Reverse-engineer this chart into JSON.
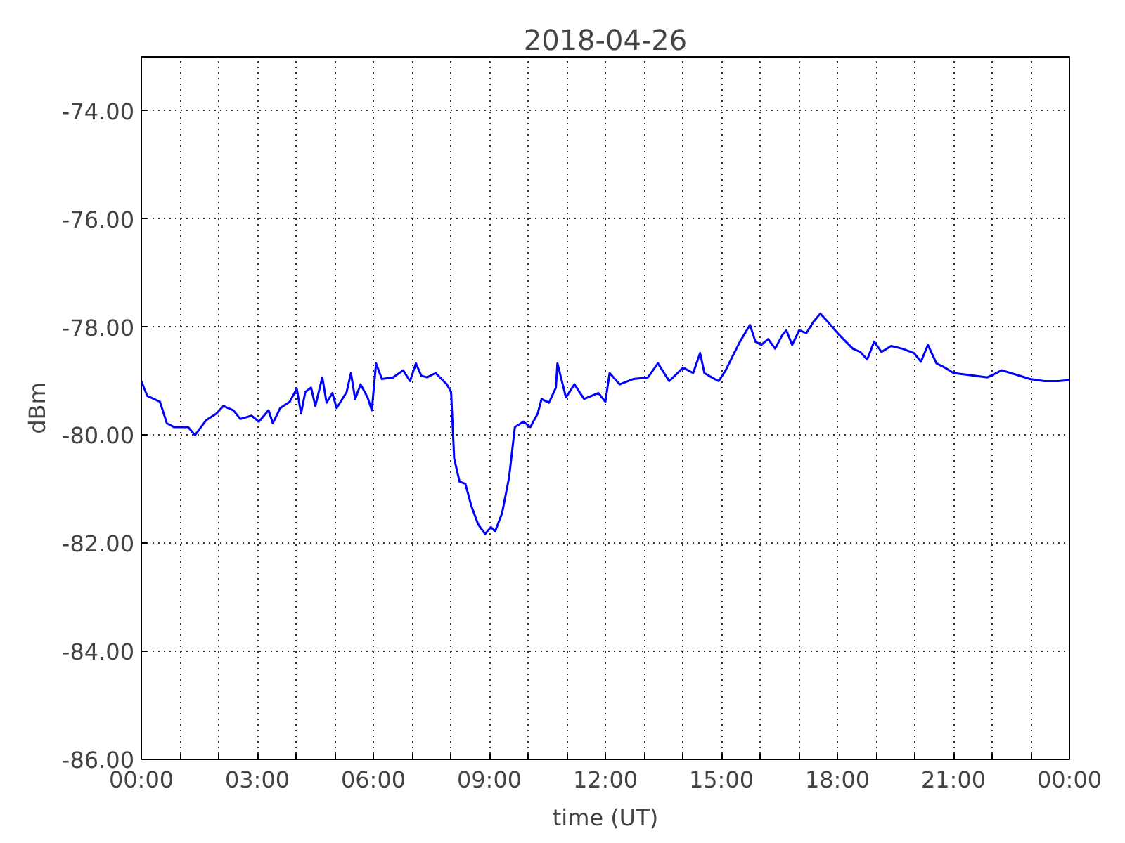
{
  "chart_data": {
    "type": "line",
    "title": "2018-04-26",
    "xlabel": "time (UT)",
    "ylabel": "dBm",
    "grid": true,
    "line_style": "solid",
    "marker": "none",
    "xlim": [
      0,
      24
    ],
    "ylim": [
      -86,
      -73
    ],
    "xticks": [
      {
        "value": 0,
        "label": "00:00"
      },
      {
        "value": 1,
        "label": null
      },
      {
        "value": 2,
        "label": null
      },
      {
        "value": 3,
        "label": "03:00"
      },
      {
        "value": 4,
        "label": null
      },
      {
        "value": 5,
        "label": null
      },
      {
        "value": 6,
        "label": "06:00"
      },
      {
        "value": 7,
        "label": null
      },
      {
        "value": 8,
        "label": null
      },
      {
        "value": 9,
        "label": "09:00"
      },
      {
        "value": 10,
        "label": null
      },
      {
        "value": 11,
        "label": null
      },
      {
        "value": 12,
        "label": "12:00"
      },
      {
        "value": 13,
        "label": null
      },
      {
        "value": 14,
        "label": null
      },
      {
        "value": 15,
        "label": "15:00"
      },
      {
        "value": 16,
        "label": null
      },
      {
        "value": 17,
        "label": null
      },
      {
        "value": 18,
        "label": "18:00"
      },
      {
        "value": 19,
        "label": null
      },
      {
        "value": 20,
        "label": null
      },
      {
        "value": 21,
        "label": "21:00"
      },
      {
        "value": 22,
        "label": null
      },
      {
        "value": 23,
        "label": null
      },
      {
        "value": 24,
        "label": "00:00"
      }
    ],
    "yticks": [
      {
        "value": -86,
        "label": "-86.00"
      },
      {
        "value": -84,
        "label": "-84.00"
      },
      {
        "value": -82,
        "label": "-82.00"
      },
      {
        "value": -80,
        "label": "-80.00"
      },
      {
        "value": -78,
        "label": "-78.00"
      },
      {
        "value": -76,
        "label": "-76.00"
      },
      {
        "value": -74,
        "label": "-74.00"
      }
    ],
    "x": [
      0,
      0.15,
      0.48,
      0.66,
      0.84,
      1.21,
      1.39,
      1.68,
      1.94,
      2.12,
      2.38,
      2.56,
      2.85,
      3.04,
      3.29,
      3.4,
      3.59,
      3.84,
      4.02,
      4.13,
      4.24,
      4.39,
      4.5,
      4.68,
      4.79,
      4.94,
      5.05,
      5.31,
      5.42,
      5.53,
      5.67,
      5.85,
      5.96,
      6.07,
      6.22,
      6.51,
      6.77,
      6.95,
      7.1,
      7.24,
      7.39,
      7.61,
      7.9,
      8.01,
      8.09,
      8.23,
      8.38,
      8.53,
      8.71,
      8.89,
      9.04,
      9.15,
      9.33,
      9.51,
      9.66,
      9.88,
      10.06,
      10.25,
      10.35,
      10.54,
      10.72,
      10.76,
      10.98,
      11.2,
      11.45,
      11.82,
      12.0,
      12.11,
      12.37,
      12.73,
      13.1,
      13.36,
      13.65,
      14.01,
      14.27,
      14.45,
      14.56,
      14.75,
      14.93,
      15.11,
      15.29,
      15.48,
      15.74,
      15.88,
      16.03,
      16.21,
      16.39,
      16.58,
      16.68,
      16.83,
      17.01,
      17.2,
      17.38,
      17.56,
      17.75,
      18.04,
      18.22,
      18.4,
      18.59,
      18.77,
      18.95,
      19.14,
      19.39,
      19.68,
      19.98,
      20.16,
      20.34,
      20.56,
      20.78,
      21.0,
      21.33,
      21.88,
      22.25,
      22.62,
      22.98,
      23.35,
      23.71,
      24.0
    ],
    "series": [
      {
        "color": "#0000ff",
        "values": [
          -79.0,
          -79.27,
          -79.38,
          -79.78,
          -79.85,
          -79.85,
          -80.0,
          -79.72,
          -79.6,
          -79.46,
          -79.54,
          -79.7,
          -79.64,
          -79.75,
          -79.54,
          -79.78,
          -79.5,
          -79.38,
          -79.14,
          -79.6,
          -79.2,
          -79.12,
          -79.46,
          -78.93,
          -79.4,
          -79.22,
          -79.5,
          -79.2,
          -78.85,
          -79.33,
          -79.06,
          -79.3,
          -79.54,
          -78.67,
          -78.96,
          -78.93,
          -78.8,
          -79.0,
          -78.67,
          -78.9,
          -78.93,
          -78.85,
          -79.06,
          -79.2,
          -80.43,
          -80.86,
          -80.9,
          -81.3,
          -81.65,
          -81.83,
          -81.7,
          -81.78,
          -81.44,
          -80.78,
          -79.85,
          -79.75,
          -79.85,
          -79.6,
          -79.33,
          -79.4,
          -79.12,
          -78.67,
          -79.3,
          -79.06,
          -79.33,
          -79.22,
          -79.38,
          -78.85,
          -79.06,
          -78.96,
          -78.93,
          -78.67,
          -79.0,
          -78.75,
          -78.85,
          -78.48,
          -78.85,
          -78.93,
          -79.0,
          -78.8,
          -78.54,
          -78.27,
          -77.96,
          -78.27,
          -78.33,
          -78.22,
          -78.4,
          -78.14,
          -78.06,
          -78.33,
          -78.06,
          -78.11,
          -77.9,
          -77.75,
          -77.9,
          -78.14,
          -78.27,
          -78.4,
          -78.46,
          -78.6,
          -78.27,
          -78.46,
          -78.35,
          -78.4,
          -78.48,
          -78.64,
          -78.33,
          -78.67,
          -78.75,
          -78.85,
          -78.88,
          -78.93,
          -78.8,
          -78.88,
          -78.96,
          -79.0,
          -79.0,
          -78.98
        ]
      }
    ]
  }
}
